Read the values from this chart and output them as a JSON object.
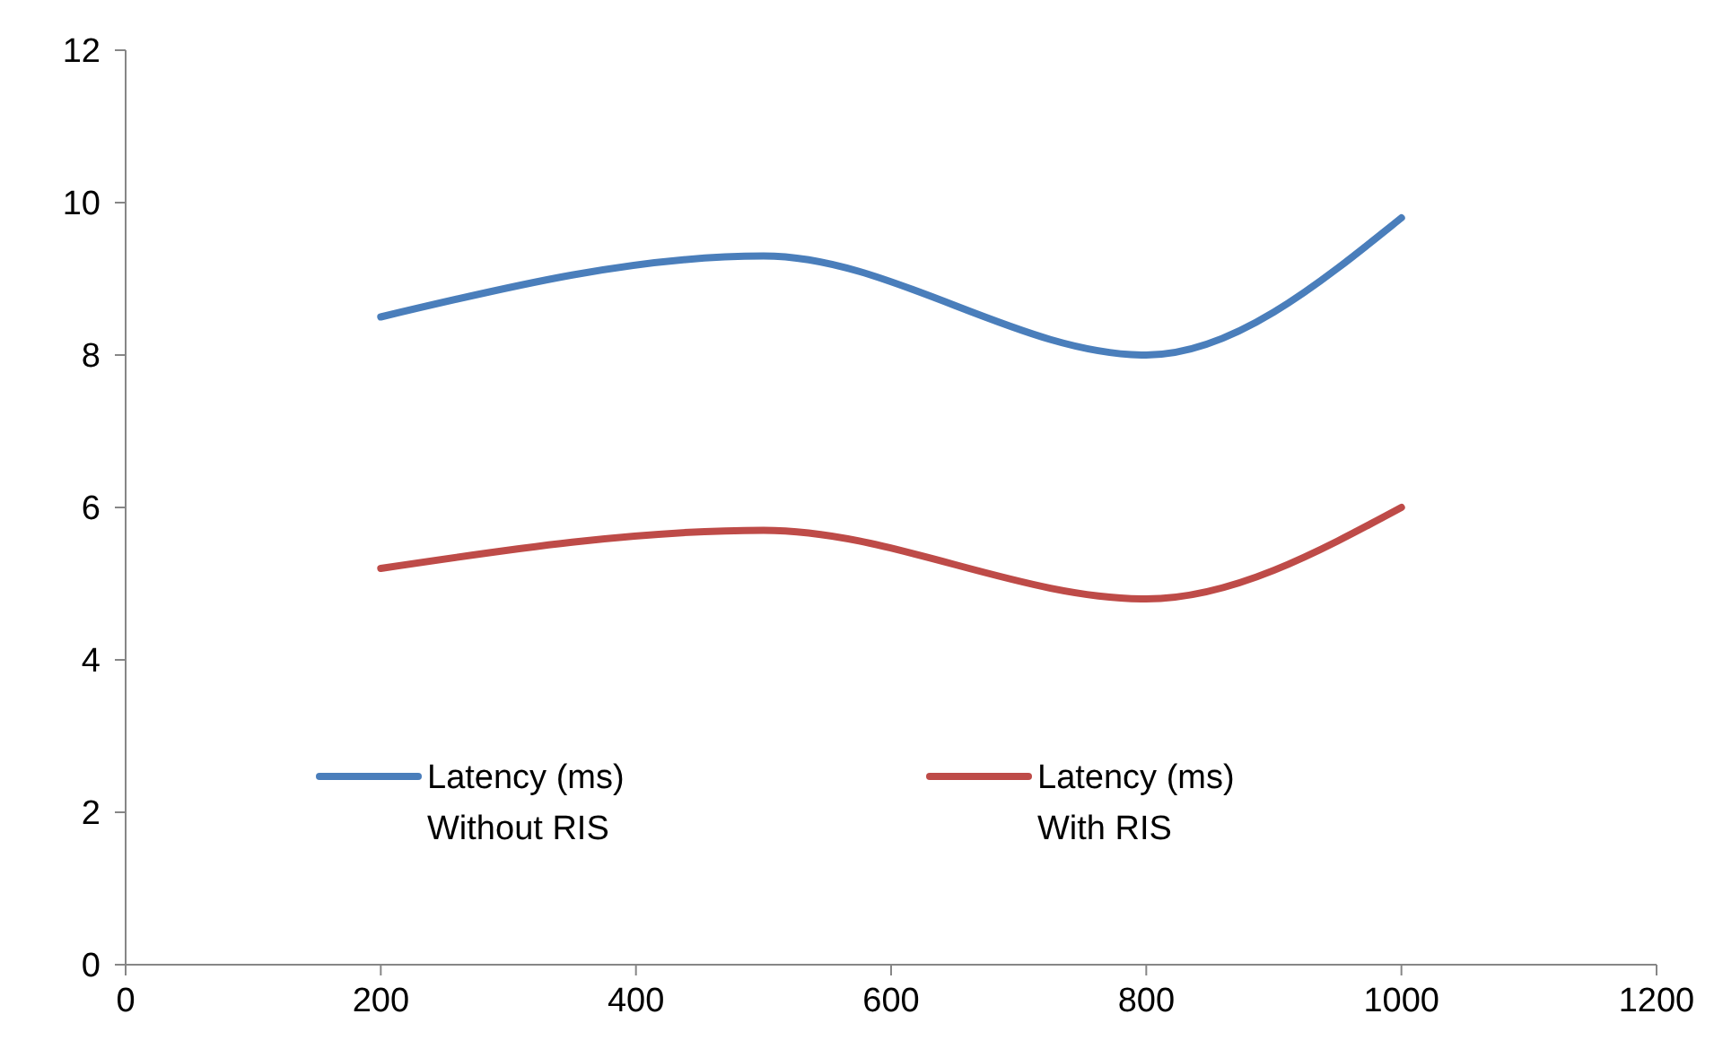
{
  "chart_data": {
    "type": "line",
    "x": [
      200,
      500,
      800,
      1000
    ],
    "series": [
      {
        "name": "Latency (ms) Without RIS",
        "color": "#4a7ebb",
        "values": [
          8.5,
          9.3,
          8.0,
          9.8
        ]
      },
      {
        "name": "Latency (ms) With RIS",
        "color": "#be4b48",
        "values": [
          5.2,
          5.7,
          4.8,
          6.0
        ]
      }
    ],
    "xlim": [
      0,
      1200
    ],
    "xticks": [
      0,
      200,
      400,
      600,
      800,
      1000,
      1200
    ],
    "ylim": [
      0,
      12
    ],
    "yticks": [
      0,
      2,
      4,
      6,
      8,
      10,
      12
    ],
    "grid": false,
    "legend": "bottom",
    "marker": "none",
    "line_style": "solid"
  }
}
